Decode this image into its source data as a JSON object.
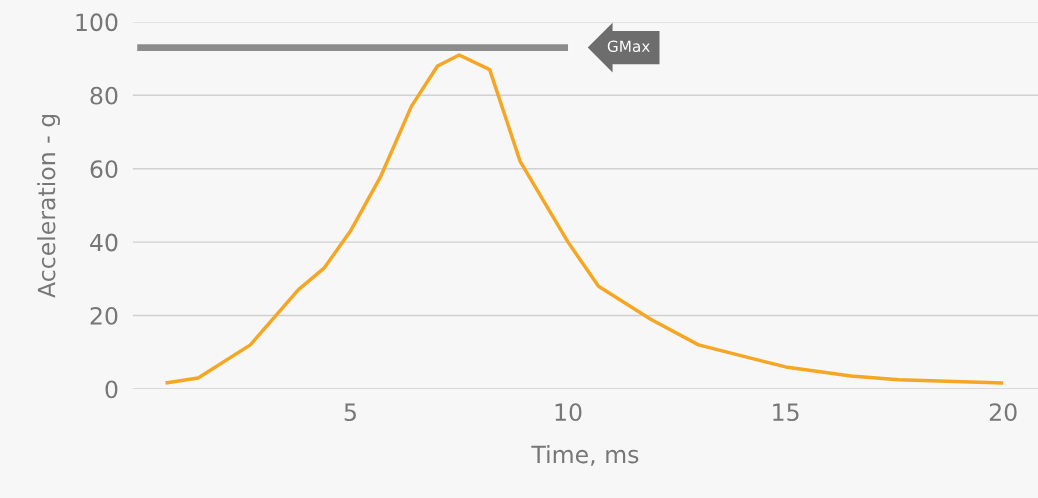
{
  "chart_data": {
    "type": "line",
    "xlabel": "Time, ms",
    "ylabel": "Acceleration - g",
    "series": [
      {
        "color": "#f5a623",
        "x": [
          0.75,
          1.5,
          2.7,
          3.8,
          4.4,
          5,
          5.7,
          6.4,
          7.0,
          7.5,
          8.2,
          8.9,
          10,
          10.7,
          11.9,
          13,
          15,
          16.5,
          17.6,
          20
        ],
        "values": [
          1.6,
          3,
          12,
          27,
          33,
          43,
          58,
          77,
          88,
          91,
          87,
          62,
          40,
          28,
          19,
          12,
          6,
          3.5,
          2.5,
          1.6
        ]
      },
      {
        "color": "#8c8c8c",
        "x": [
          0.1,
          10
        ],
        "values": [
          93,
          93
        ]
      }
    ],
    "annotations": [
      {
        "text": "GMax",
        "x": 10,
        "y": 93
      }
    ],
    "xlim": [
      0,
      20.8
    ],
    "ylim": [
      0,
      100
    ],
    "xticks": [
      5,
      10,
      15,
      20
    ],
    "yticks": [
      0,
      20,
      40,
      60,
      80,
      100
    ],
    "grid": "y",
    "marker": "none",
    "line_style": "solid"
  }
}
